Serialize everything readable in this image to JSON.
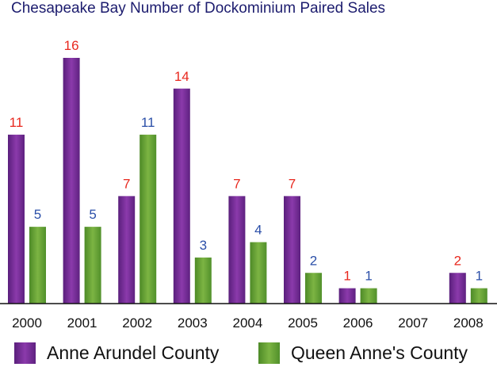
{
  "chart_data": {
    "type": "bar",
    "title": "Chesapeake Bay Number of Dockominium Paired Sales",
    "xlabel": "",
    "ylabel": "",
    "categories": [
      "2000",
      "2001",
      "2002",
      "2003",
      "2004",
      "2005",
      "2006",
      "2007",
      "2008"
    ],
    "series": [
      {
        "name": "Anne Arundel County",
        "values": [
          11,
          16,
          7,
          14,
          7,
          7,
          1,
          null,
          2
        ],
        "color": "#7a2d9a",
        "label_color": "#e8281e"
      },
      {
        "name": "Queen Anne's County",
        "values": [
          5,
          5,
          11,
          3,
          4,
          2,
          1,
          null,
          1
        ],
        "color": "#6aa23a",
        "label_color": "#2b4fa8"
      }
    ],
    "ylim": [
      0,
      16
    ],
    "grid": false,
    "legend_position": "bottom"
  }
}
